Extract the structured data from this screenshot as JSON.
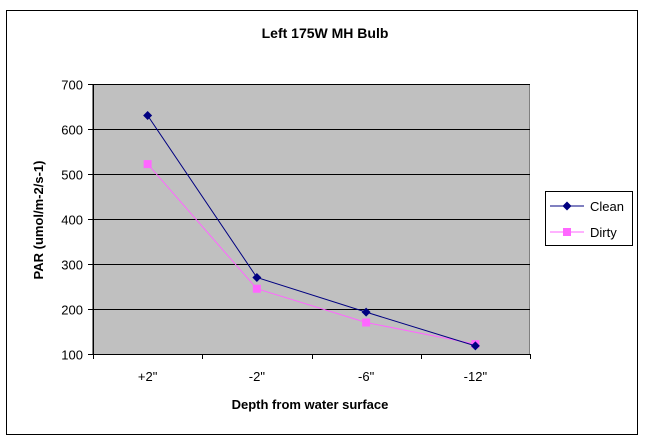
{
  "chart_data": {
    "type": "line",
    "title": "Left 175W MH Bulb",
    "xlabel": "Depth from water surface",
    "ylabel": "PAR (umol/m-2/s-1)",
    "categories": [
      "+2\"",
      "-2\"",
      "-6\"",
      "-12\""
    ],
    "ylim": [
      100,
      700
    ],
    "yticks": [
      100,
      200,
      300,
      400,
      500,
      600,
      700
    ],
    "grid": true,
    "legend_position": "right",
    "series": [
      {
        "name": "Clean",
        "values": [
          630,
          270,
          193,
          118
        ],
        "color": "#000080",
        "marker": "diamond"
      },
      {
        "name": "Dirty",
        "values": [
          522,
          245,
          170,
          122
        ],
        "color": "#ff66ff",
        "marker": "square"
      }
    ],
    "plot_background": "#c0c0c0"
  }
}
